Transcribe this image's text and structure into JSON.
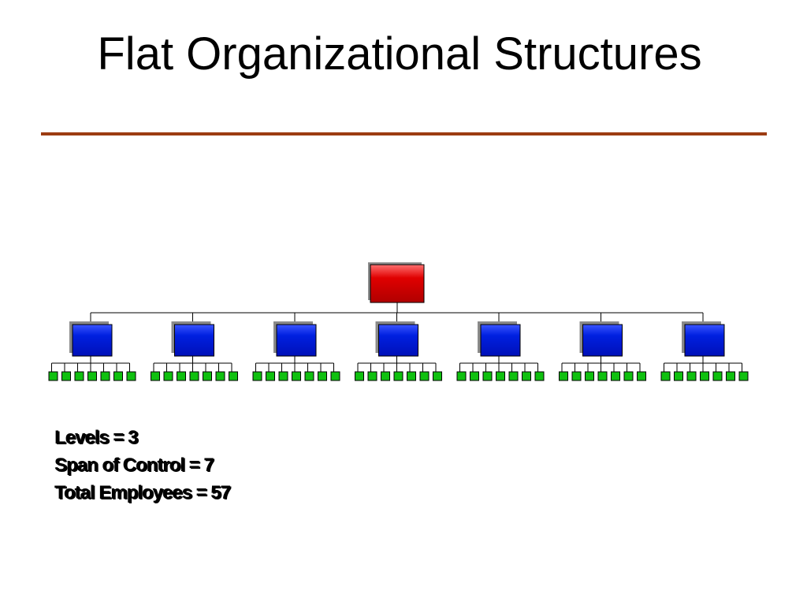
{
  "slide": {
    "title": "Flat Organizational Structures"
  },
  "colors": {
    "rule": "#9c3c12",
    "top_box": "#d40000",
    "middle_box": "#0018d8",
    "bottom_box": "#10c010",
    "box_shadow": "#8a8a8a",
    "connector": "#000000"
  },
  "org_chart": {
    "levels": 3,
    "top_count": 1,
    "middle_count": 7,
    "bottom_per_middle": 7
  },
  "stats": {
    "levels": "Levels = 3",
    "span": "Span of Control = 7",
    "total": "Total Employees = 57"
  }
}
